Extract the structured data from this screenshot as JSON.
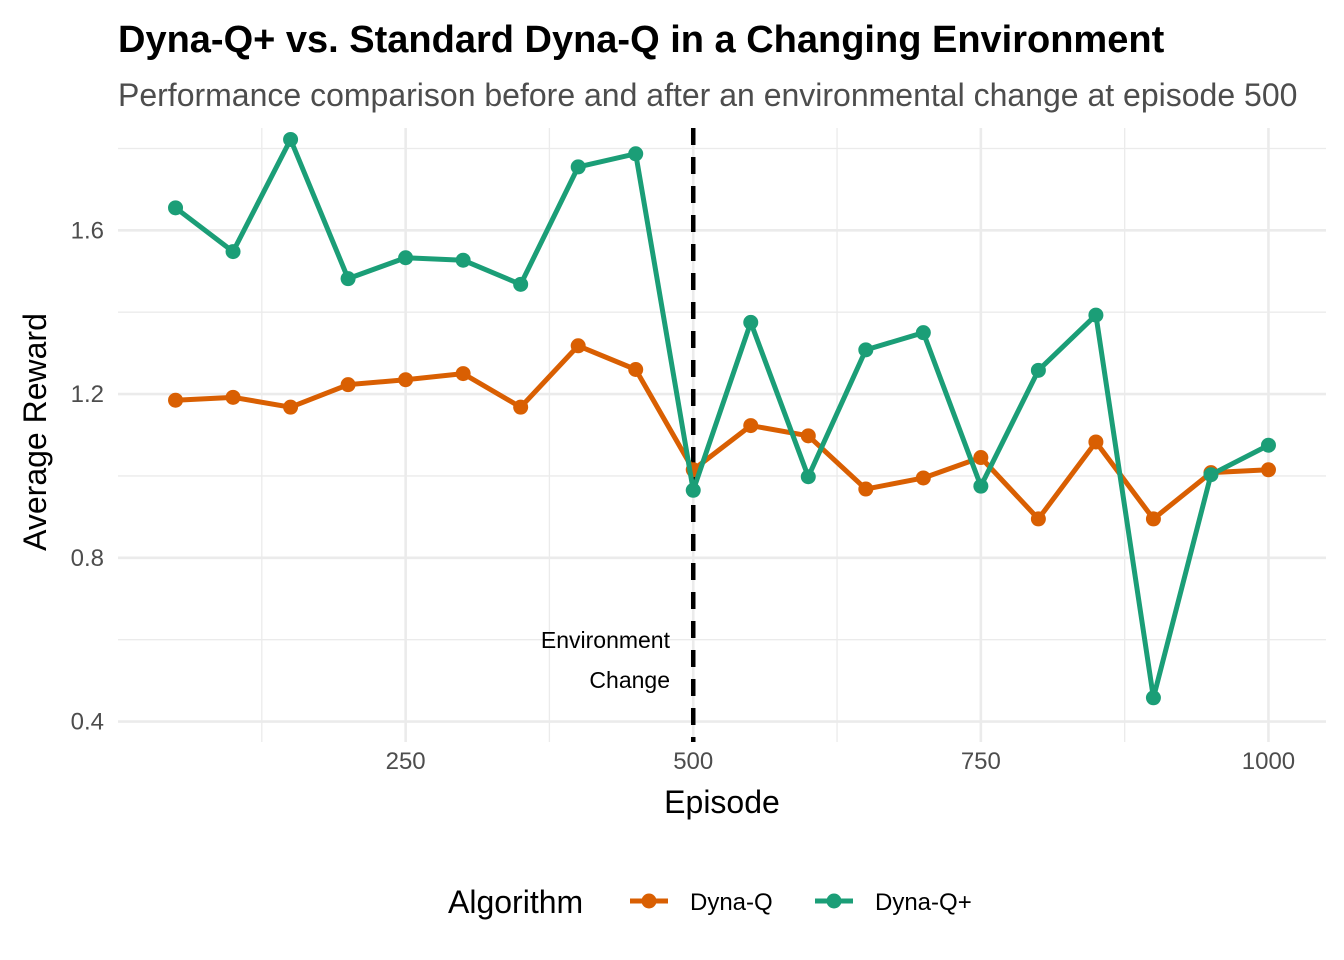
{
  "chart_data": {
    "type": "line",
    "title": "Dyna-Q+ vs. Standard Dyna-Q in a Changing Environment",
    "subtitle": "Performance comparison before and after an environmental change at episode 500",
    "xlabel": "Episode",
    "ylabel": "Average Reward",
    "xlim": [
      0,
      1050
    ],
    "ylim": [
      0.35,
      1.85
    ],
    "xticks": [
      250,
      500,
      750,
      1000
    ],
    "yticks": [
      0.4,
      0.8,
      1.2,
      1.6
    ],
    "grid": true,
    "x": [
      50,
      100,
      150,
      200,
      250,
      300,
      350,
      400,
      450,
      500,
      550,
      600,
      650,
      700,
      750,
      800,
      850,
      900,
      950,
      1000
    ],
    "series": [
      {
        "name": "Dyna-Q",
        "color": "#d95f02",
        "values": [
          1.185,
          1.192,
          1.168,
          1.223,
          1.235,
          1.25,
          1.168,
          1.318,
          1.26,
          1.015,
          1.123,
          1.098,
          0.968,
          0.995,
          1.045,
          0.895,
          1.083,
          0.895,
          1.008,
          1.015
        ]
      },
      {
        "name": "Dyna-Q+",
        "color": "#1b9e77",
        "values": [
          1.655,
          1.548,
          1.822,
          1.482,
          1.533,
          1.527,
          1.468,
          1.755,
          1.787,
          0.965,
          1.375,
          0.998,
          1.308,
          1.35,
          0.975,
          1.258,
          1.393,
          0.458,
          1.003,
          1.075
        ]
      }
    ],
    "vline": {
      "x": 500,
      "style": "dashed",
      "color": "#000000"
    },
    "annotation": {
      "line1": "Environment",
      "line2": "Change"
    },
    "legend": {
      "title": "Algorithm",
      "position": "bottom"
    }
  }
}
